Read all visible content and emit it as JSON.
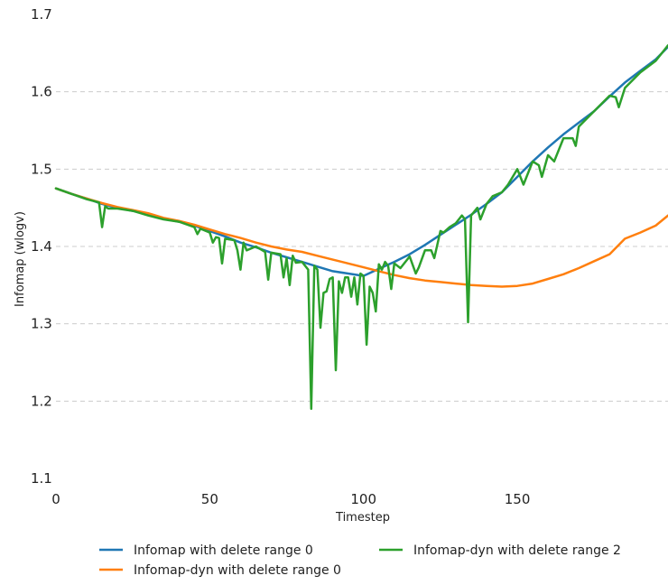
{
  "chart_data": {
    "type": "line",
    "xlabel": "Timestep",
    "ylabel": "Infomap (wlogv)",
    "xlim": [
      0,
      199
    ],
    "ylim": [
      1.1,
      1.7
    ],
    "xticks": [
      0,
      50,
      100,
      150
    ],
    "yticks": [
      1.1,
      1.2,
      1.3,
      1.4,
      1.5,
      1.6,
      1.7
    ],
    "grid": "horizontal dashed",
    "legend_position": "bottom",
    "series": [
      {
        "name": "Infomap with delete range 0",
        "color": "#1f77b4",
        "x": [
          0,
          5,
          10,
          15,
          20,
          25,
          30,
          35,
          40,
          45,
          50,
          55,
          60,
          65,
          70,
          75,
          80,
          85,
          90,
          95,
          100,
          105,
          110,
          115,
          120,
          125,
          130,
          135,
          140,
          145,
          150,
          155,
          160,
          165,
          170,
          175,
          180,
          185,
          190,
          195,
          199
        ],
        "y": [
          1.475,
          1.468,
          1.462,
          1.455,
          1.45,
          1.446,
          1.441,
          1.436,
          1.432,
          1.427,
          1.42,
          1.413,
          1.405,
          1.399,
          1.392,
          1.386,
          1.38,
          1.374,
          1.368,
          1.365,
          1.362,
          1.371,
          1.38,
          1.39,
          1.402,
          1.415,
          1.428,
          1.441,
          1.455,
          1.47,
          1.49,
          1.51,
          1.528,
          1.545,
          1.56,
          1.575,
          1.594,
          1.612,
          1.627,
          1.642,
          1.658
        ]
      },
      {
        "name": "Infomap-dyn with delete range 0",
        "color": "#ff7f0e",
        "x": [
          0,
          5,
          10,
          15,
          20,
          25,
          30,
          35,
          40,
          45,
          50,
          55,
          60,
          65,
          70,
          75,
          80,
          85,
          90,
          95,
          100,
          105,
          110,
          115,
          120,
          125,
          130,
          135,
          140,
          145,
          150,
          155,
          160,
          165,
          170,
          175,
          180,
          185,
          190,
          195,
          199
        ],
        "y": [
          1.475,
          1.468,
          1.462,
          1.456,
          1.451,
          1.447,
          1.443,
          1.437,
          1.433,
          1.428,
          1.422,
          1.416,
          1.411,
          1.405,
          1.4,
          1.396,
          1.393,
          1.388,
          1.383,
          1.378,
          1.373,
          1.368,
          1.363,
          1.359,
          1.356,
          1.354,
          1.352,
          1.35,
          1.349,
          1.348,
          1.349,
          1.352,
          1.358,
          1.364,
          1.372,
          1.381,
          1.39,
          1.41,
          1.418,
          1.427,
          1.44
        ]
      },
      {
        "name": "Infomap-dyn with delete range 2",
        "color": "#2ca02c",
        "x": [
          0,
          5,
          10,
          14,
          15,
          16,
          17,
          20,
          25,
          30,
          35,
          40,
          45,
          46,
          47,
          50,
          51,
          52,
          53,
          54,
          55,
          58,
          59,
          60,
          61,
          62,
          65,
          68,
          69,
          70,
          73,
          74,
          75,
          76,
          77,
          78,
          80,
          82,
          83,
          84,
          85,
          86,
          87,
          88,
          89,
          90,
          91,
          92,
          93,
          94,
          95,
          96,
          97,
          98,
          99,
          100,
          101,
          102,
          103,
          104,
          105,
          106,
          107,
          108,
          109,
          110,
          112,
          115,
          117,
          118,
          120,
          122,
          123,
          125,
          126,
          128,
          130,
          132,
          133,
          134,
          135,
          137,
          138,
          140,
          142,
          145,
          147,
          150,
          152,
          155,
          157,
          158,
          160,
          162,
          165,
          168,
          169,
          170,
          175,
          180,
          182,
          183,
          185,
          190,
          195,
          199
        ],
        "y": [
          1.475,
          1.468,
          1.461,
          1.457,
          1.425,
          1.452,
          1.449,
          1.449,
          1.446,
          1.44,
          1.435,
          1.432,
          1.425,
          1.416,
          1.423,
          1.418,
          1.405,
          1.412,
          1.411,
          1.378,
          1.41,
          1.408,
          1.395,
          1.37,
          1.405,
          1.395,
          1.4,
          1.393,
          1.357,
          1.392,
          1.39,
          1.36,
          1.385,
          1.35,
          1.388,
          1.379,
          1.38,
          1.37,
          1.19,
          1.375,
          1.37,
          1.295,
          1.34,
          1.342,
          1.358,
          1.36,
          1.24,
          1.355,
          1.34,
          1.36,
          1.36,
          1.335,
          1.36,
          1.325,
          1.365,
          1.362,
          1.273,
          1.348,
          1.34,
          1.316,
          1.377,
          1.37,
          1.38,
          1.375,
          1.345,
          1.378,
          1.372,
          1.387,
          1.365,
          1.373,
          1.395,
          1.395,
          1.385,
          1.42,
          1.418,
          1.425,
          1.43,
          1.44,
          1.435,
          1.302,
          1.44,
          1.45,
          1.435,
          1.455,
          1.465,
          1.47,
          1.48,
          1.5,
          1.48,
          1.51,
          1.505,
          1.49,
          1.518,
          1.51,
          1.54,
          1.54,
          1.53,
          1.555,
          1.575,
          1.595,
          1.593,
          1.58,
          1.605,
          1.625,
          1.64,
          1.66
        ]
      }
    ]
  }
}
